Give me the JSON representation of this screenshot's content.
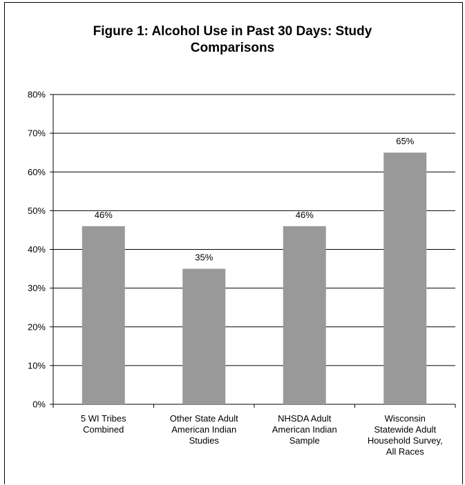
{
  "chart_data": {
    "type": "bar",
    "title": "Figure 1: Alcohol Use in Past 30 Days: Study\nComparisons",
    "categories": [
      [
        "5 WI Tribes",
        "Combined"
      ],
      [
        "Other State Adult",
        "American Indian",
        "Studies"
      ],
      [
        "NHSDA Adult",
        "American Indian",
        "Sample"
      ],
      [
        "Wisconsin",
        "Statewide Adult",
        "Household Survey,",
        "All Races"
      ]
    ],
    "values": [
      46,
      35,
      46,
      65
    ],
    "data_labels": [
      "46%",
      "35%",
      "46%",
      "65%"
    ],
    "ylim": [
      0,
      80
    ],
    "y_ticks": [
      "0%",
      "10%",
      "20%",
      "30%",
      "40%",
      "50%",
      "60%",
      "70%",
      "80%"
    ],
    "grid": true,
    "legend": "none",
    "bar_color": "#999999",
    "grid_color": "#000000"
  }
}
